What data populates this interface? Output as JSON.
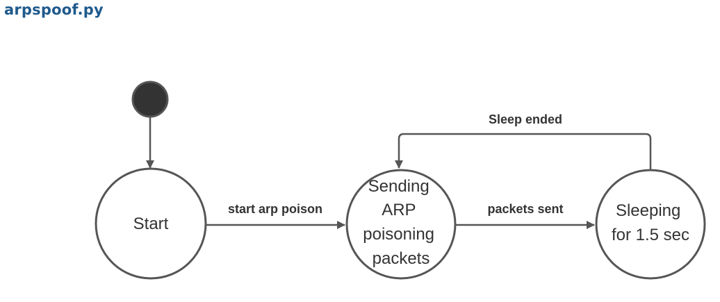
{
  "title": "arpspoof.py",
  "states": {
    "start": {
      "lines": [
        "Start"
      ]
    },
    "sending": {
      "lines": [
        "Sending",
        "ARP",
        "poisoning",
        "packets"
      ]
    },
    "sleeping": {
      "lines": [
        "Sleeping",
        "for 1.5 sec"
      ]
    }
  },
  "transitions": {
    "start_to_sending": "start arp poison",
    "sending_to_sleeping": "packets sent",
    "sleeping_to_sending": "Sleep ended"
  },
  "colors": {
    "title": "#1f5a8c",
    "stroke": "#555555",
    "initial_fill": "#333333",
    "text": "#333333"
  }
}
